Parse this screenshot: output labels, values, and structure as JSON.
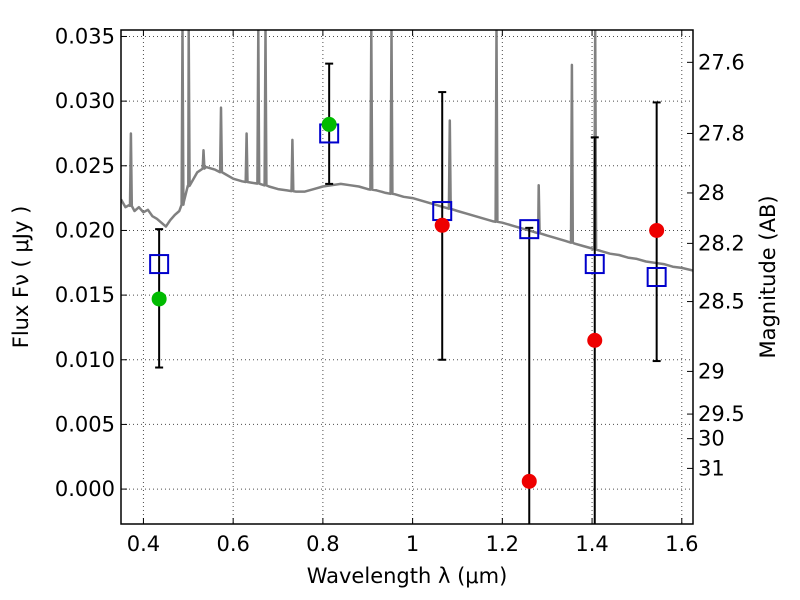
{
  "chart_data": {
    "type": "scatter",
    "xlabel": "Wavelength  λ (μm)",
    "ylabel": "Flux  Fν  ( μJy )",
    "ylabel_right": "Magnitude (AB)",
    "xlim": [
      0.35,
      1.625
    ],
    "ylim": [
      -0.0027,
      0.0355
    ],
    "x_ticks": [
      {
        "value": 0.4,
        "label": "0.4"
      },
      {
        "value": 0.6,
        "label": "0.6"
      },
      {
        "value": 0.8,
        "label": "0.8"
      },
      {
        "value": 1.0,
        "label": "1"
      },
      {
        "value": 1.2,
        "label": "1.2"
      },
      {
        "value": 1.4,
        "label": "1.4"
      },
      {
        "value": 1.6,
        "label": "1.6"
      }
    ],
    "y_ticks": [
      {
        "value": 0.0,
        "label": "0.000"
      },
      {
        "value": 0.005,
        "label": "0.005"
      },
      {
        "value": 0.01,
        "label": "0.010"
      },
      {
        "value": 0.015,
        "label": "0.015"
      },
      {
        "value": 0.02,
        "label": "0.020"
      },
      {
        "value": 0.025,
        "label": "0.025"
      },
      {
        "value": 0.03,
        "label": "0.030"
      },
      {
        "value": 0.035,
        "label": "0.035"
      }
    ],
    "right_ticks": [
      {
        "flux": 0.033,
        "label": "27.6"
      },
      {
        "flux": 0.0275,
        "label": "27.8"
      },
      {
        "flux": 0.0229,
        "label": "28"
      },
      {
        "flux": 0.019,
        "label": "28.2"
      },
      {
        "flux": 0.0145,
        "label": "28.5"
      },
      {
        "flux": 0.0091,
        "label": "29"
      },
      {
        "flux": 0.0058,
        "label": "29.5"
      },
      {
        "flux": 0.0039,
        "label": "30"
      },
      {
        "flux": 0.0016,
        "label": "31"
      }
    ],
    "grid": true,
    "colors": {
      "spectrum": "#808080",
      "model": "#0000cc",
      "detection": "#00bb00",
      "nondetection": "#ee0000",
      "errorbar": "#000000"
    },
    "spectrum": {
      "name": "",
      "x": [
        0.35,
        0.36,
        0.37,
        0.38,
        0.39,
        0.4,
        0.41,
        0.42,
        0.43,
        0.44,
        0.45,
        0.46,
        0.47,
        0.48,
        0.49,
        0.5,
        0.52,
        0.54,
        0.56,
        0.58,
        0.6,
        0.62,
        0.64,
        0.66,
        0.68,
        0.7,
        0.72,
        0.74,
        0.76,
        0.78,
        0.8,
        0.82,
        0.84,
        0.86,
        0.88,
        0.9,
        0.92,
        0.94,
        0.96,
        0.98,
        1.0,
        1.02,
        1.04,
        1.06,
        1.08,
        1.1,
        1.12,
        1.14,
        1.16,
        1.18,
        1.2,
        1.22,
        1.24,
        1.26,
        1.28,
        1.3,
        1.32,
        1.34,
        1.36,
        1.38,
        1.4,
        1.42,
        1.44,
        1.46,
        1.48,
        1.5,
        1.52,
        1.54,
        1.56,
        1.58,
        1.6,
        1.625
      ],
      "y": [
        0.0224,
        0.0218,
        0.022,
        0.0215,
        0.0218,
        0.0214,
        0.0216,
        0.0211,
        0.0209,
        0.0206,
        0.0203,
        0.0208,
        0.0212,
        0.0215,
        0.0222,
        0.0234,
        0.0245,
        0.0249,
        0.0247,
        0.0244,
        0.024,
        0.0238,
        0.0237,
        0.0236,
        0.0234,
        0.0232,
        0.0231,
        0.023,
        0.023,
        0.0232,
        0.0234,
        0.0235,
        0.0236,
        0.0235,
        0.0234,
        0.0232,
        0.0231,
        0.0229,
        0.0228,
        0.0226,
        0.0225,
        0.0223,
        0.0221,
        0.0219,
        0.0217,
        0.0215,
        0.0213,
        0.0211,
        0.0209,
        0.0207,
        0.0206,
        0.0204,
        0.0202,
        0.02,
        0.0198,
        0.0196,
        0.0194,
        0.0192,
        0.019,
        0.0188,
        0.0186,
        0.0184,
        0.0182,
        0.0181,
        0.0179,
        0.0178,
        0.0176,
        0.0175,
        0.0174,
        0.0172,
        0.0171,
        0.0169
      ],
      "lines": [
        {
          "x": 0.372,
          "peak": 0.0275
        },
        {
          "x": 0.487,
          "peak": 0.0355
        },
        {
          "x": 0.501,
          "peak": 0.0355
        },
        {
          "x": 0.534,
          "peak": 0.0262
        },
        {
          "x": 0.573,
          "peak": 0.0295
        },
        {
          "x": 0.63,
          "peak": 0.0275
        },
        {
          "x": 0.656,
          "peak": 0.0355
        },
        {
          "x": 0.672,
          "peak": 0.0355
        },
        {
          "x": 0.732,
          "peak": 0.027
        },
        {
          "x": 0.908,
          "peak": 0.0355
        },
        {
          "x": 0.953,
          "peak": 0.0355
        },
        {
          "x": 1.083,
          "peak": 0.0285
        },
        {
          "x": 1.187,
          "peak": 0.0355
        },
        {
          "x": 1.281,
          "peak": 0.0235
        },
        {
          "x": 1.355,
          "peak": 0.0328
        },
        {
          "x": 1.407,
          "peak": 0.0355
        }
      ]
    },
    "series": [
      {
        "name": "",
        "marker": "square",
        "x": [
          0.435,
          0.814,
          1.066,
          1.26,
          1.406,
          1.544
        ],
        "y": [
          0.0174,
          0.0275,
          0.0215,
          0.0201,
          0.0174,
          0.0164
        ]
      },
      {
        "name": "",
        "marker": "circle-green",
        "x": [
          0.435,
          0.814
        ],
        "y": [
          0.0147,
          0.0282
        ],
        "err_low": [
          0.0094,
          0.0236
        ],
        "err_high": [
          0.0201,
          0.0329
        ]
      },
      {
        "name": "",
        "marker": "circle-red",
        "x": [
          1.066,
          1.26,
          1.406,
          1.544
        ],
        "y": [
          0.0204,
          0.0006,
          0.0115,
          0.02
        ],
        "err_low": [
          0.01,
          -0.003,
          -0.003,
          0.0099
        ],
        "err_high": [
          0.0307,
          0.0202,
          0.0272,
          0.0299
        ]
      }
    ]
  }
}
